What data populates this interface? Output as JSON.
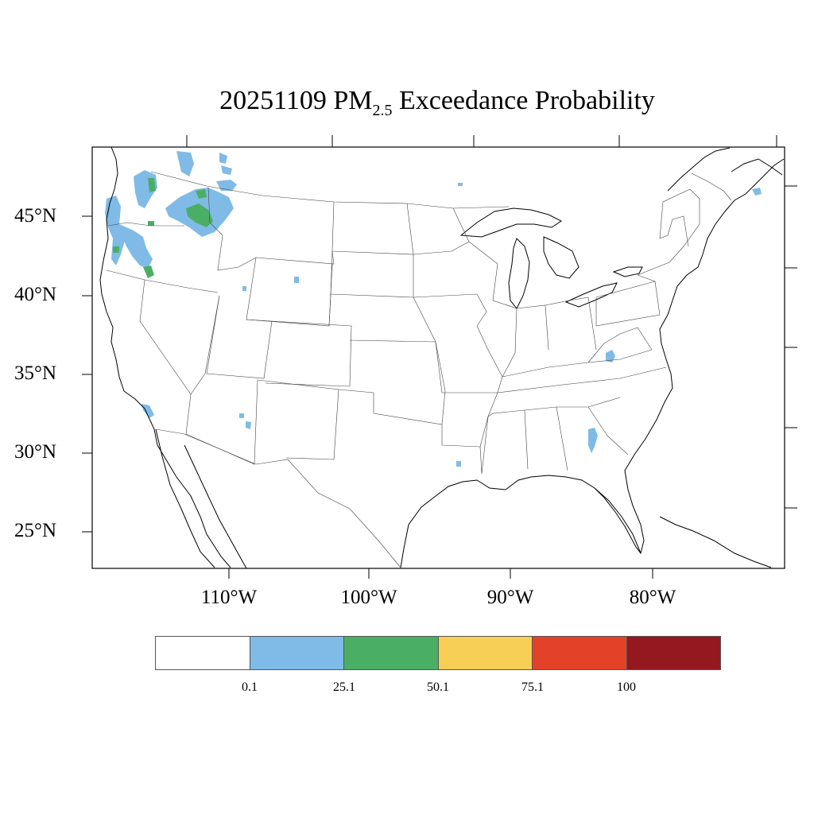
{
  "title": {
    "date": "20251109",
    "pm_prefix": "PM",
    "pm_sub": "2.5",
    "suffix": "Exceedance Probability"
  },
  "axes": {
    "lat_labels": [
      "45°N",
      "40°N",
      "35°N",
      "30°N",
      "25°N"
    ],
    "lon_labels": [
      "110°W",
      "100°W",
      "90°W",
      "80°W"
    ]
  },
  "legend": {
    "colors": [
      "#ffffff",
      "#7fbbe6",
      "#4aaf65",
      "#f8cf55",
      "#e34229",
      "#94181d"
    ],
    "labels": [
      "0.1",
      "25.1",
      "50.1",
      "75.1",
      "100"
    ]
  },
  "colors": {
    "blue": "#7fbbe6",
    "green": "#4aaf65",
    "outline": "#000000",
    "state_line": "#444444"
  },
  "regions": [
    {
      "name": "northwest-oregon-coast",
      "level": "blue"
    },
    {
      "name": "washington-cascades",
      "level": "green"
    },
    {
      "name": "idaho-montana",
      "level": "green"
    },
    {
      "name": "southern-oregon",
      "level": "green"
    },
    {
      "name": "southern-california",
      "level": "blue"
    },
    {
      "name": "arizona",
      "level": "blue"
    },
    {
      "name": "wyoming",
      "level": "blue"
    },
    {
      "name": "kentucky-virginia",
      "level": "blue"
    },
    {
      "name": "georgia",
      "level": "blue"
    },
    {
      "name": "louisiana",
      "level": "blue"
    },
    {
      "name": "new-brunswick",
      "level": "blue"
    },
    {
      "name": "lake-superior",
      "level": "blue"
    }
  ]
}
